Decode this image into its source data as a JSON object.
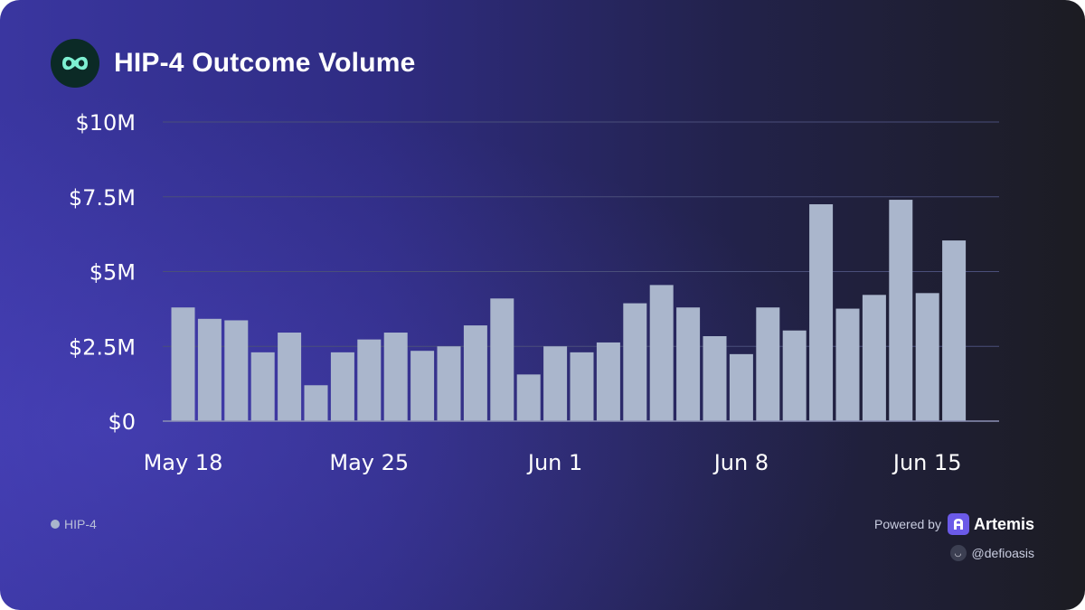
{
  "header": {
    "title": "HIP-4 Outcome Volume",
    "logo_icon": "hyperliquid-logo-icon"
  },
  "legend": {
    "series_label": "HIP-4"
  },
  "footer": {
    "powered_by": "Powered by",
    "brand": "Artemis",
    "handle": "@defioasis",
    "brand_icon": "artemis-logo-icon",
    "avatar_icon": "avatar-icon"
  },
  "colors": {
    "bar": "#aab6cc",
    "gridline": "#4a4f7a",
    "accent_logo": "#7ef0d2",
    "brand": "#6b5ae8"
  },
  "chart_data": {
    "type": "bar",
    "title": "HIP-4 Outcome Volume",
    "xlabel": "",
    "ylabel": "",
    "ylim": [
      0,
      10000000
    ],
    "y_ticks": [
      0,
      2500000,
      5000000,
      7500000,
      10000000
    ],
    "y_tick_labels": [
      "$0",
      "$2.5M",
      "$5M",
      "$7.5M",
      "$10M"
    ],
    "x_tick_labels": [
      "May 18",
      "May 25",
      "Jun 1",
      "Jun 8",
      "Jun 15"
    ],
    "x_tick_dates": [
      "May 18",
      "May 25",
      "Jun 1",
      "Jun 8",
      "Jun 15"
    ],
    "grid": true,
    "categories": [
      "May 18",
      "May 19",
      "May 20",
      "May 21",
      "May 22",
      "May 23",
      "May 24",
      "May 25",
      "May 26",
      "May 27",
      "May 28",
      "May 29",
      "May 30",
      "May 31",
      "Jun 1",
      "Jun 2",
      "Jun 3",
      "Jun 4",
      "Jun 5",
      "Jun 6",
      "Jun 7",
      "Jun 8",
      "Jun 9",
      "Jun 10",
      "Jun 11",
      "Jun 12",
      "Jun 13",
      "Jun 14",
      "Jun 15",
      "Jun 16"
    ],
    "series": [
      {
        "name": "HIP-4",
        "values": [
          3800000,
          3420000,
          3370000,
          2300000,
          2960000,
          1200000,
          2300000,
          2730000,
          2960000,
          2350000,
          2500000,
          3200000,
          4100000,
          1560000,
          2500000,
          2300000,
          2630000,
          3940000,
          4550000,
          3800000,
          2840000,
          2240000,
          3800000,
          3030000,
          7250000,
          3760000,
          4220000,
          7400000,
          4280000,
          6040000
        ]
      }
    ]
  }
}
